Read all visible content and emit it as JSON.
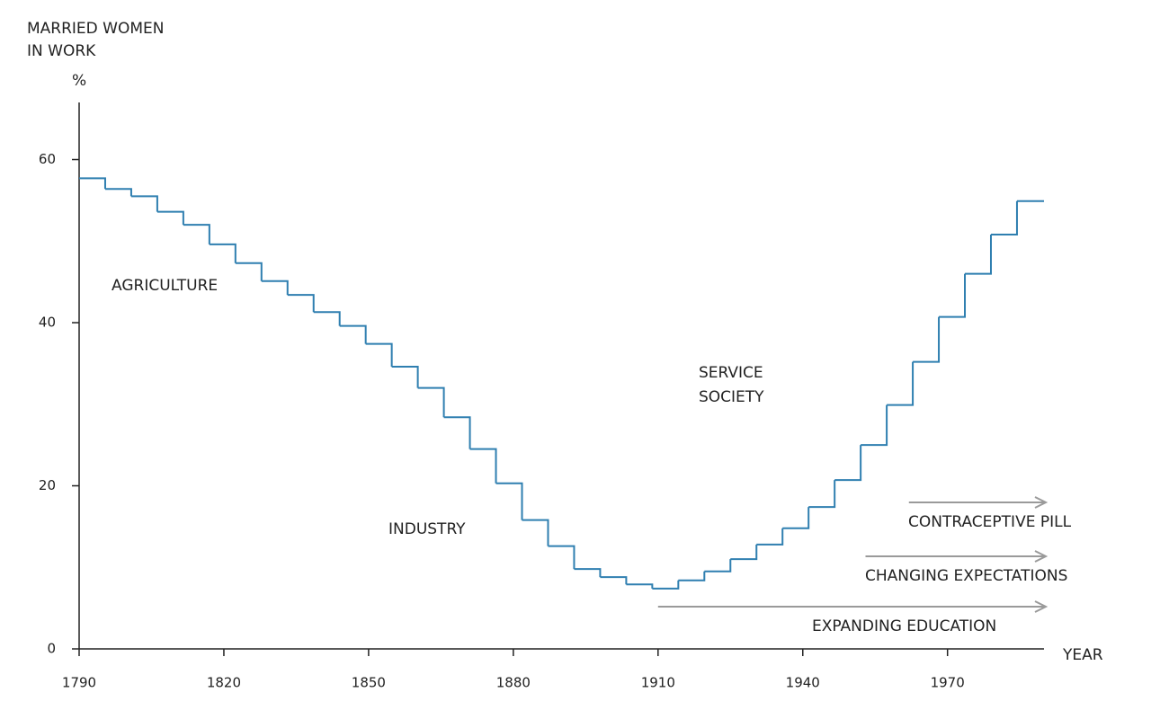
{
  "chart_data": {
    "type": "step",
    "y_label": [
      "MARRIED WOMEN",
      "IN WORK"
    ],
    "y_unit": "%",
    "x_label": "YEAR",
    "x": [
      1790,
      1795.4,
      1800.8,
      1806.2,
      1811.6,
      1817,
      1822.4,
      1827.8,
      1833.2,
      1838.6,
      1844,
      1849.4,
      1854.8,
      1860.2,
      1865.6,
      1871,
      1876.4,
      1881.8,
      1887.2,
      1892.6,
      1898,
      1903.4,
      1908.8,
      1914.2,
      1919.6,
      1925,
      1930.4,
      1935.8,
      1941.2,
      1946.6,
      1952,
      1957.4,
      1962.8,
      1968.2,
      1973.6,
      1979,
      1984.4
    ],
    "values": [
      57.7,
      56.4,
      55.5,
      53.6,
      52,
      49.6,
      47.3,
      45.1,
      43.4,
      41.3,
      39.6,
      37.4,
      34.6,
      32.0,
      28.4,
      24.5,
      20.3,
      15.8,
      12.6,
      9.8,
      8.8,
      7.9,
      7.4,
      8.4,
      9.5,
      11.0,
      12.8,
      14.8,
      17.4,
      20.7,
      25.0,
      29.9,
      35.2,
      40.7,
      46.0,
      50.8,
      54.9
    ],
    "color": "#2f7fb0",
    "xlim": [
      1790,
      1990
    ],
    "ylim": [
      0,
      67
    ],
    "xticks": [
      1790,
      1820,
      1850,
      1880,
      1910,
      1940,
      1970
    ],
    "yticks": [
      0,
      20,
      40,
      60
    ],
    "eras": [
      [
        "AGRICULTURE"
      ],
      [
        "INDUSTRY"
      ],
      [
        "SERVICE",
        "SOCIETY"
      ]
    ],
    "trends": [
      {
        "label": "CONTRACEPTIVE PILL",
        "from": 1962
      },
      {
        "label": "CHANGING EXPECTATIONS",
        "from": 1953
      },
      {
        "label": "EXPANDING EDUCATION",
        "from": 1910
      }
    ]
  }
}
